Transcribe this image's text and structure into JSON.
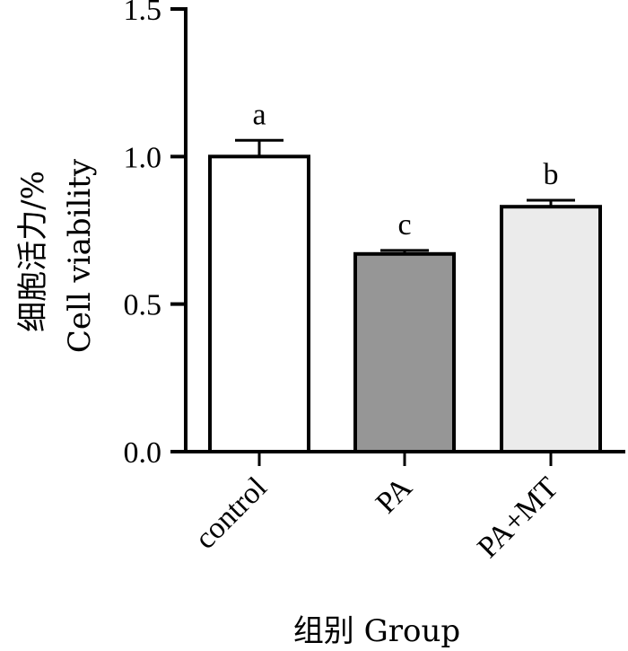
{
  "chart_data": {
    "type": "bar",
    "categories": [
      "control",
      "PA",
      "PA+MT"
    ],
    "values": [
      1.0,
      0.67,
      0.83
    ],
    "errors": [
      0.055,
      0.012,
      0.022
    ],
    "significance": [
      "a",
      "c",
      "b"
    ],
    "bar_colors": [
      "#ffffff",
      "#969696",
      "#ebebeb"
    ],
    "ylim": [
      0,
      1.5
    ],
    "yticks": [
      "0.0",
      "0.5",
      "1.0",
      "1.5"
    ],
    "ylabel_cn": "细胞活力/%",
    "ylabel_en": "Cell viability",
    "xlabel": "组别 Group",
    "grid": false,
    "legend": "none"
  }
}
